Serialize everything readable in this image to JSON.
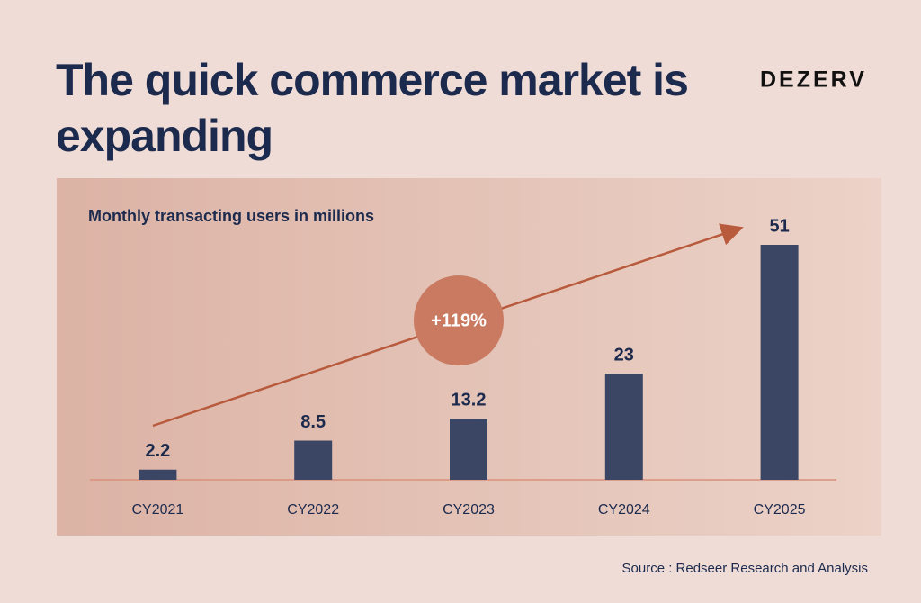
{
  "chart_data": {
    "type": "bar",
    "title": "The quick commerce market is expanding",
    "brand": "DEZERV",
    "subtitle": "Monthly transacting users in millions",
    "annotation": "+119%",
    "source": "Source : Redseer Research and Analysis",
    "categories": [
      "CY2021",
      "CY2022",
      "CY2023",
      "CY2024",
      "CY2025"
    ],
    "values": [
      2.2,
      8.5,
      13.2,
      23,
      51
    ],
    "color": "#3b4664"
  }
}
